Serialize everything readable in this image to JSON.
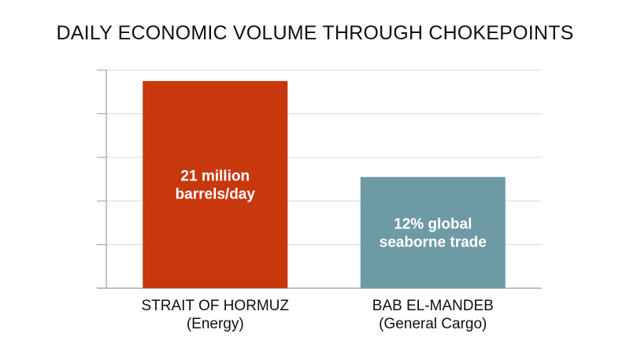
{
  "chart_data": {
    "type": "bar",
    "title": "DAILY ECONOMIC VOLUME THROUGH CHOKEPOINTS",
    "xlabel": "",
    "ylabel": "",
    "ylim": [
      0,
      100
    ],
    "grid": true,
    "categories": [
      [
        "STRAIT OF HORMUZ",
        "(Energy)"
      ],
      [
        "BAB EL-MANDEB",
        "(General Cargo)"
      ]
    ],
    "values": [
      95,
      51
    ],
    "data_labels": [
      [
        "21 million",
        "barrels/day"
      ],
      [
        "12% global",
        "seaborne trade"
      ]
    ],
    "colors": [
      "#c7380f",
      "#6e9aa6"
    ]
  }
}
